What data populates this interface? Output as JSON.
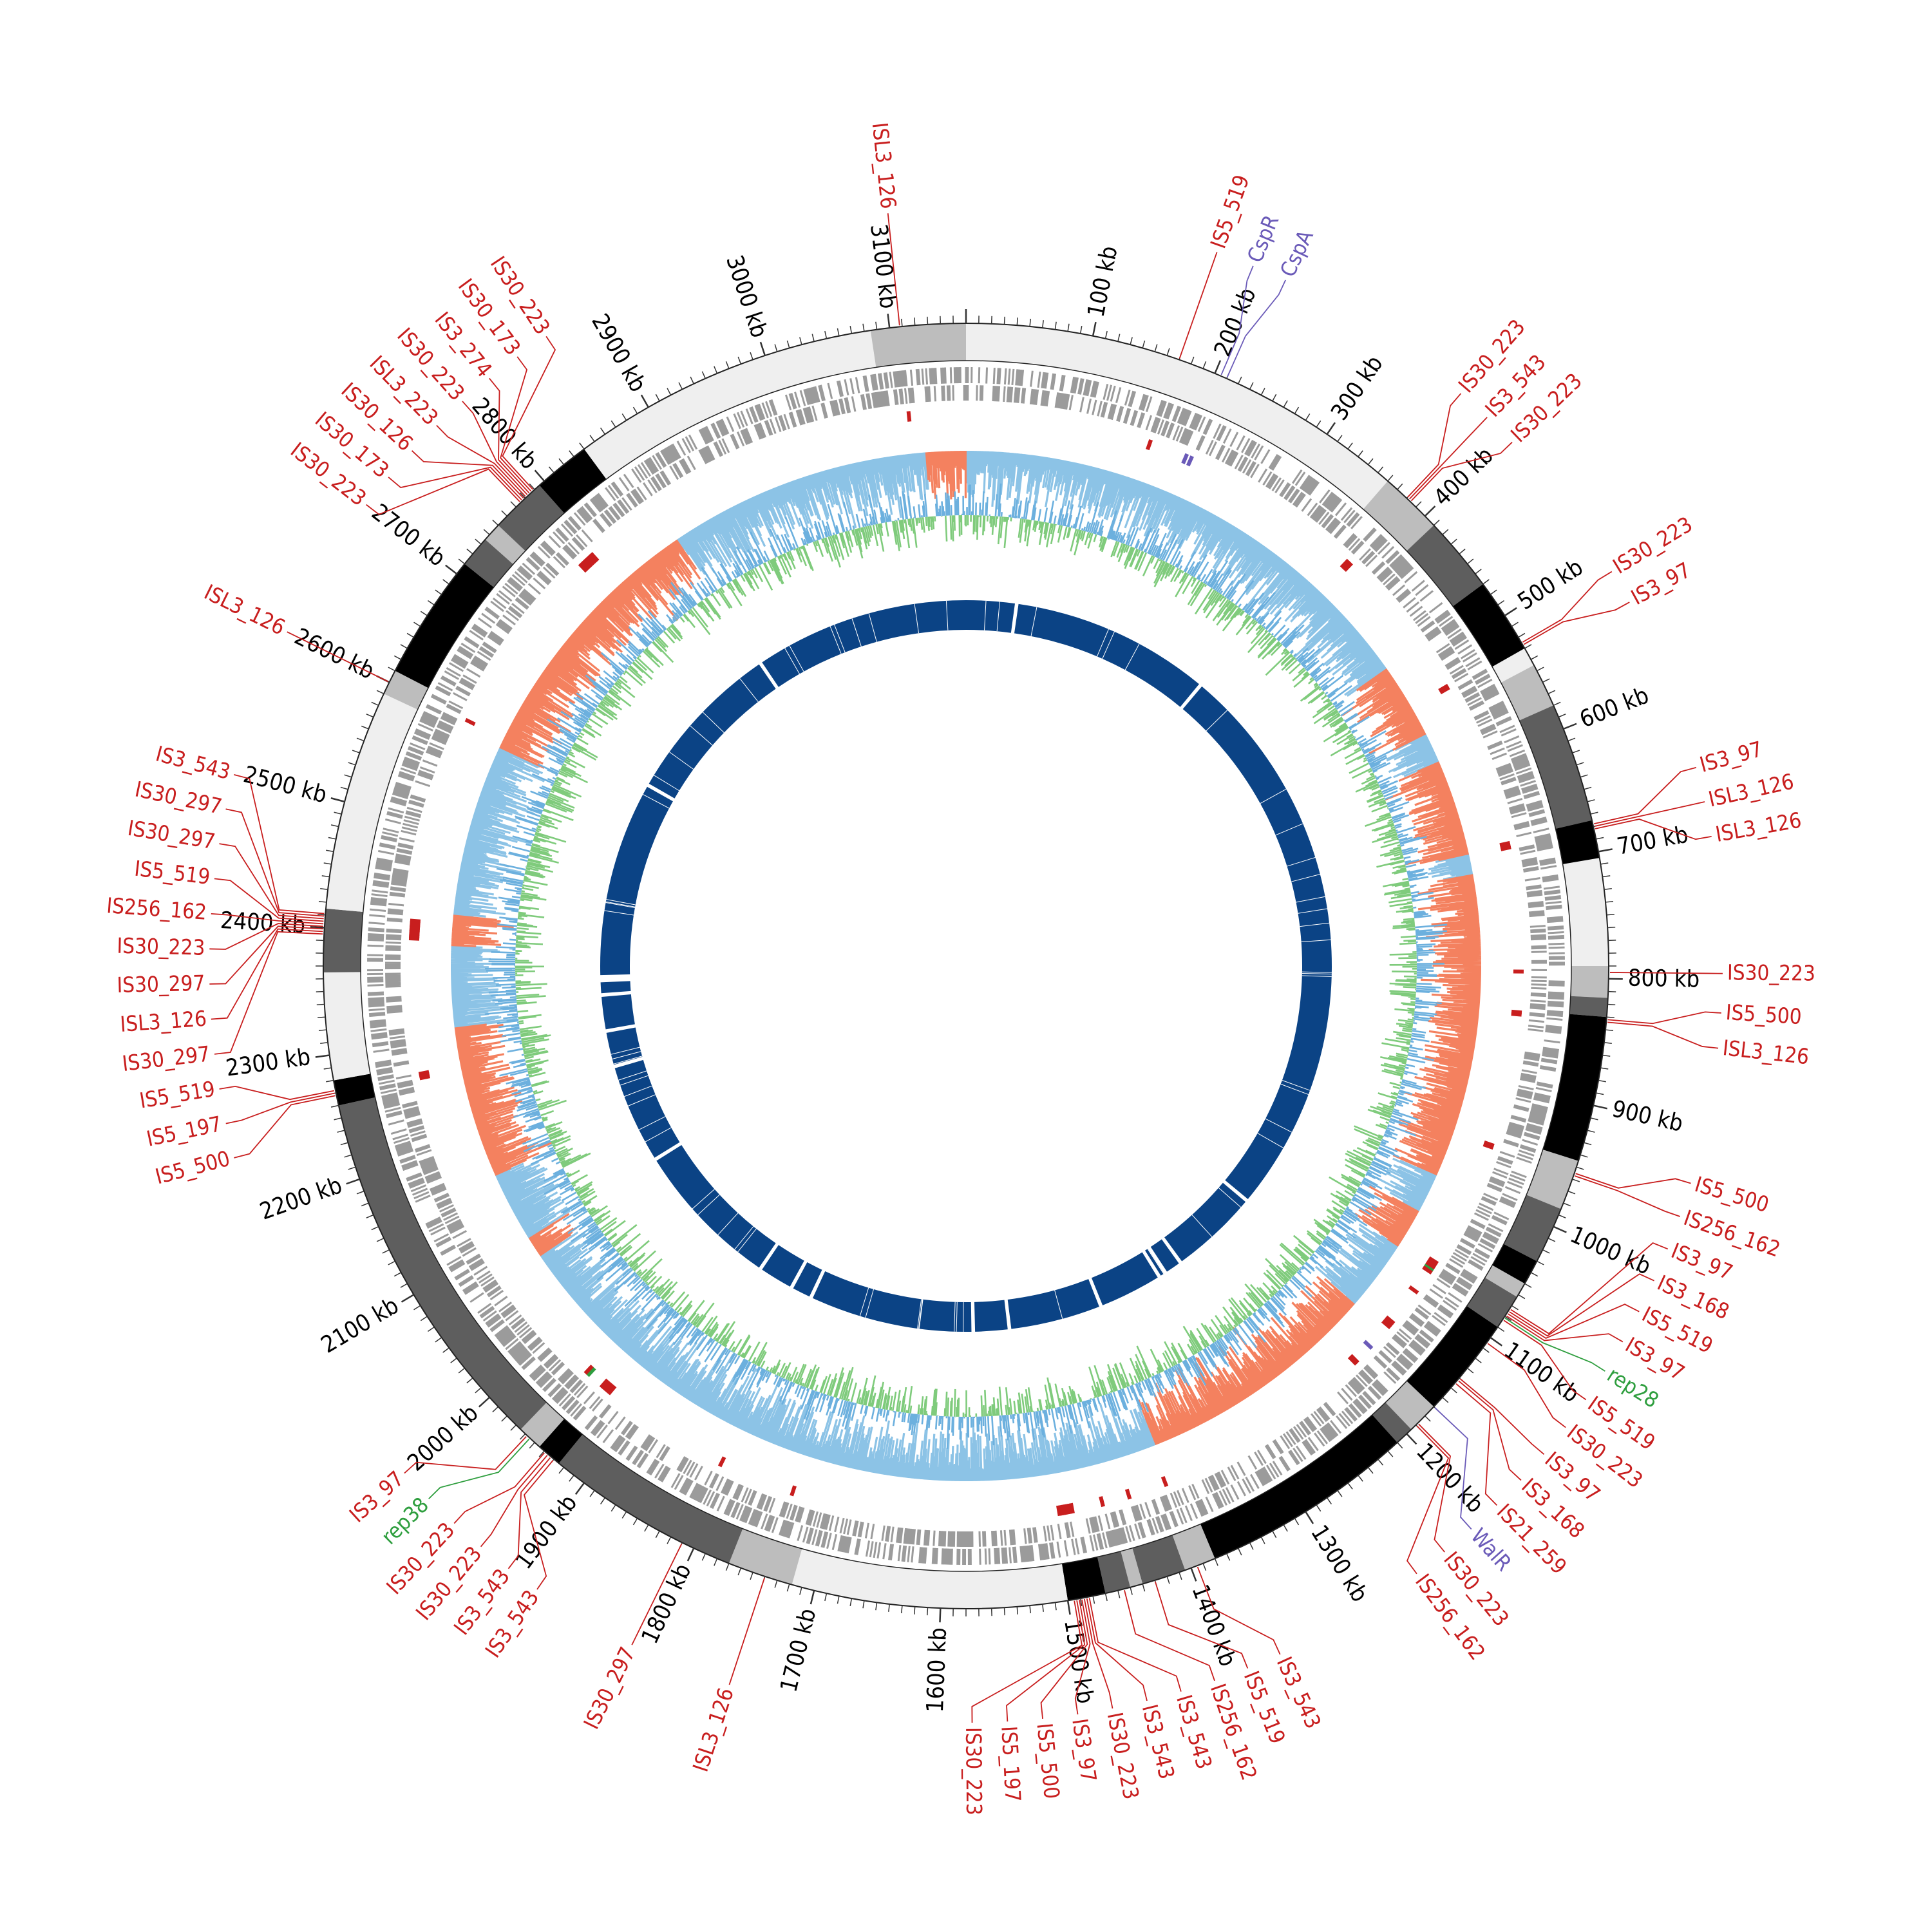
{
  "genome": {
    "length_kb": 3160,
    "scale_unit": "kb",
    "scale_ticks_kb": [
      100,
      200,
      300,
      400,
      500,
      600,
      700,
      800,
      900,
      1000,
      1100,
      1200,
      1300,
      1400,
      1500,
      1600,
      1700,
      1800,
      1900,
      2000,
      2100,
      2200,
      2300,
      2400,
      2500,
      2600,
      2700,
      2800,
      2900,
      3000,
      3100
    ]
  },
  "colors": {
    "is_element": "#c81e1e",
    "rep": "#2e9e3e",
    "regulator": "#6a5ab8",
    "blue_track": "#0b4385",
    "gc_skew_positive": "#8cc3e6",
    "gc_skew_negative": "#f4815f",
    "gc_content_low": "#7fcb7c",
    "gc_content_high": "#6cb0de",
    "cds": "#9b9b9b",
    "block_black": "#000000",
    "block_dark": "#5e5e5e",
    "block_mid": "#bdbdbd",
    "block_light": "#efefef"
  },
  "labels": [
    {
      "text": "ISL3_126",
      "kb": 3108,
      "color": "is"
    },
    {
      "text": "IS5_519",
      "kb": 170,
      "color": "is"
    },
    {
      "text": "CspR",
      "kb": 205,
      "color": "reg"
    },
    {
      "text": "CspA",
      "kb": 210,
      "color": "reg"
    },
    {
      "text": "IS30_223",
      "kb": 380,
      "color": "is"
    },
    {
      "text": "IS3_543",
      "kb": 382,
      "color": "is"
    },
    {
      "text": "IS30_223",
      "kb": 384,
      "color": "is"
    },
    {
      "text": "IS30_223",
      "kb": 525,
      "color": "is"
    },
    {
      "text": "IS3_97",
      "kb": 527,
      "color": "is"
    },
    {
      "text": "IS3_97",
      "kb": 678,
      "color": "is"
    },
    {
      "text": "ISL3_126",
      "kb": 680,
      "color": "is"
    },
    {
      "text": "ISL3_126",
      "kb": 682,
      "color": "is"
    },
    {
      "text": "IS30_223",
      "kb": 795,
      "color": "is"
    },
    {
      "text": "IS5_500",
      "kb": 832,
      "color": "is"
    },
    {
      "text": "ISL3_126",
      "kb": 834,
      "color": "is"
    },
    {
      "text": "IS5_500",
      "kb": 955,
      "color": "is"
    },
    {
      "text": "IS256_162",
      "kb": 957,
      "color": "is"
    },
    {
      "text": "IS3_97",
      "kb": 1073,
      "color": "is"
    },
    {
      "text": "IS3_168",
      "kb": 1075,
      "color": "is"
    },
    {
      "text": "IS5_519",
      "kb": 1077,
      "color": "is"
    },
    {
      "text": "IS3_97",
      "kb": 1079,
      "color": "is"
    },
    {
      "text": "rep28",
      "kb": 1081,
      "color": "rep"
    },
    {
      "text": "IS5_519",
      "kb": 1083,
      "color": "is"
    },
    {
      "text": "IS30_223",
      "kb": 1105,
      "color": "is"
    },
    {
      "text": "IS3_97",
      "kb": 1140,
      "color": "is"
    },
    {
      "text": "IS3_168",
      "kb": 1142,
      "color": "is"
    },
    {
      "text": "IS21_259",
      "kb": 1145,
      "color": "is"
    },
    {
      "text": "WalR",
      "kb": 1170,
      "color": "reg"
    },
    {
      "text": "IS30_223",
      "kb": 1188,
      "color": "is"
    },
    {
      "text": "IS256_162",
      "kb": 1190,
      "color": "is"
    },
    {
      "text": "IS3_543",
      "kb": 1395,
      "color": "is"
    },
    {
      "text": "IS5_519",
      "kb": 1430,
      "color": "is"
    },
    {
      "text": "IS256_162",
      "kb": 1455,
      "color": "is"
    },
    {
      "text": "IS3_543",
      "kb": 1483,
      "color": "is"
    },
    {
      "text": "IS3_543",
      "kb": 1485,
      "color": "is"
    },
    {
      "text": "IS30_223",
      "kb": 1487,
      "color": "is"
    },
    {
      "text": "IS3_97",
      "kb": 1489,
      "color": "is"
    },
    {
      "text": "IS5_500",
      "kb": 1491,
      "color": "is"
    },
    {
      "text": "IS5_197",
      "kb": 1493,
      "color": "is"
    },
    {
      "text": "IS30_223",
      "kb": 1495,
      "color": "is"
    },
    {
      "text": "ISL3_126",
      "kb": 1740,
      "color": "is"
    },
    {
      "text": "IS30_297",
      "kb": 1810,
      "color": "is"
    },
    {
      "text": "IS3_543",
      "kb": 1930,
      "color": "is"
    },
    {
      "text": "IS3_543",
      "kb": 1933,
      "color": "is"
    },
    {
      "text": "IS30_223",
      "kb": 1936,
      "color": "is"
    },
    {
      "text": "IS30_223",
      "kb": 1939,
      "color": "is"
    },
    {
      "text": "rep38",
      "kb": 1955,
      "color": "rep"
    },
    {
      "text": "IS3_97",
      "kb": 1958,
      "color": "is"
    },
    {
      "text": "IS5_500",
      "kb": 2268,
      "color": "is"
    },
    {
      "text": "IS5_197",
      "kb": 2270,
      "color": "is"
    },
    {
      "text": "IS5_519",
      "kb": 2272,
      "color": "is"
    },
    {
      "text": "IS30_297",
      "kb": 2395,
      "color": "is"
    },
    {
      "text": "ISL3_126",
      "kb": 2397,
      "color": "is"
    },
    {
      "text": "IS30_297",
      "kb": 2399,
      "color": "is"
    },
    {
      "text": "IS30_223",
      "kb": 2401,
      "color": "is"
    },
    {
      "text": "IS256_162",
      "kb": 2403,
      "color": "is"
    },
    {
      "text": "IS5_519",
      "kb": 2405,
      "color": "is"
    },
    {
      "text": "IS30_297",
      "kb": 2407,
      "color": "is"
    },
    {
      "text": "IS30_297",
      "kb": 2409,
      "color": "is"
    },
    {
      "text": "IS3_543",
      "kb": 2411,
      "color": "is"
    },
    {
      "text": "ISL3_126",
      "kb": 2600,
      "color": "is"
    },
    {
      "text": "IS30_223",
      "kb": 2775,
      "color": "is"
    },
    {
      "text": "IS30_173",
      "kb": 2777,
      "color": "is"
    },
    {
      "text": "IS30_126",
      "kb": 2779,
      "color": "is"
    },
    {
      "text": "ISL3_223",
      "kb": 2781,
      "color": "is"
    },
    {
      "text": "IS30_223",
      "kb": 2783,
      "color": "is"
    },
    {
      "text": "IS3_274",
      "kb": 2785,
      "color": "is"
    },
    {
      "text": "IS30_173",
      "kb": 2787,
      "color": "is"
    },
    {
      "text": "IS30_223",
      "kb": 2789,
      "color": "is"
    }
  ],
  "outer_blocks": [
    {
      "start": 0,
      "end": 3085,
      "shade": "light"
    },
    {
      "start": 3085,
      "end": 3160,
      "shade": "mid"
    },
    {
      "start": 360,
      "end": 410,
      "shade": "mid"
    },
    {
      "start": 410,
      "end": 470,
      "shade": "dark"
    },
    {
      "start": 470,
      "end": 530,
      "shade": "black"
    },
    {
      "start": 530,
      "end": 545,
      "shade": "light"
    },
    {
      "start": 545,
      "end": 580,
      "shade": "mid"
    },
    {
      "start": 580,
      "end": 675,
      "shade": "dark"
    },
    {
      "start": 675,
      "end": 705,
      "shade": "black"
    },
    {
      "start": 790,
      "end": 815,
      "shade": "mid"
    },
    {
      "start": 815,
      "end": 830,
      "shade": "dark"
    },
    {
      "start": 830,
      "end": 945,
      "shade": "black"
    },
    {
      "start": 945,
      "end": 985,
      "shade": "mid"
    },
    {
      "start": 985,
      "end": 1030,
      "shade": "dark"
    },
    {
      "start": 1030,
      "end": 1050,
      "shade": "black"
    },
    {
      "start": 1050,
      "end": 1062,
      "shade": "mid"
    },
    {
      "start": 1062,
      "end": 1090,
      "shade": "dark"
    },
    {
      "start": 1090,
      "end": 1170,
      "shade": "black"
    },
    {
      "start": 1170,
      "end": 1195,
      "shade": "mid"
    },
    {
      "start": 1195,
      "end": 1210,
      "shade": "dark"
    },
    {
      "start": 1210,
      "end": 1380,
      "shade": "black"
    },
    {
      "start": 1380,
      "end": 1405,
      "shade": "mid"
    },
    {
      "start": 1405,
      "end": 1440,
      "shade": "dark"
    },
    {
      "start": 1440,
      "end": 1450,
      "shade": "mid"
    },
    {
      "start": 1450,
      "end": 1470,
      "shade": "dark"
    },
    {
      "start": 1470,
      "end": 1500,
      "shade": "black"
    },
    {
      "start": 1500,
      "end": 1718,
      "shade": "light"
    },
    {
      "start": 1718,
      "end": 1770,
      "shade": "mid"
    },
    {
      "start": 1770,
      "end": 1925,
      "shade": "dark"
    },
    {
      "start": 1925,
      "end": 1945,
      "shade": "black"
    },
    {
      "start": 1945,
      "end": 1965,
      "shade": "mid"
    },
    {
      "start": 1965,
      "end": 2260,
      "shade": "dark"
    },
    {
      "start": 2260,
      "end": 2280,
      "shade": "black"
    },
    {
      "start": 2280,
      "end": 2365,
      "shade": "light"
    },
    {
      "start": 2365,
      "end": 2415,
      "shade": "dark"
    },
    {
      "start": 2415,
      "end": 2590,
      "shade": "light"
    },
    {
      "start": 2590,
      "end": 2610,
      "shade": "mid"
    },
    {
      "start": 2610,
      "end": 2710,
      "shade": "black"
    },
    {
      "start": 2710,
      "end": 2735,
      "shade": "dark"
    },
    {
      "start": 2735,
      "end": 2750,
      "shade": "mid"
    },
    {
      "start": 2750,
      "end": 2795,
      "shade": "dark"
    },
    {
      "start": 2795,
      "end": 2840,
      "shade": "black"
    }
  ],
  "skew_regions": [
    {
      "start": 3120,
      "end": 3160,
      "sign": "neg"
    },
    {
      "start": 0,
      "end": 480,
      "sign": "pos"
    },
    {
      "start": 480,
      "end": 555,
      "sign": "neg"
    },
    {
      "start": 555,
      "end": 585,
      "sign": "pos"
    },
    {
      "start": 585,
      "end": 680,
      "sign": "neg"
    },
    {
      "start": 680,
      "end": 700,
      "sign": "pos"
    },
    {
      "start": 700,
      "end": 1000,
      "sign": "neg"
    },
    {
      "start": 1000,
      "end": 1040,
      "sign": "pos"
    },
    {
      "start": 1040,
      "end": 1080,
      "sign": "neg"
    },
    {
      "start": 1080,
      "end": 1150,
      "sign": "pos"
    },
    {
      "start": 1150,
      "end": 1390,
      "sign": "neg"
    },
    {
      "start": 1390,
      "end": 2070,
      "sign": "pos"
    },
    {
      "start": 2070,
      "end": 2090,
      "sign": "neg"
    },
    {
      "start": 2090,
      "end": 2160,
      "sign": "pos"
    },
    {
      "start": 2160,
      "end": 2310,
      "sign": "neg"
    },
    {
      "start": 2310,
      "end": 2390,
      "sign": "pos"
    },
    {
      "start": 2390,
      "end": 2420,
      "sign": "neg"
    },
    {
      "start": 2420,
      "end": 2590,
      "sign": "pos"
    },
    {
      "start": 2590,
      "end": 2860,
      "sign": "neg"
    },
    {
      "start": 2860,
      "end": 3120,
      "sign": "pos"
    }
  ],
  "blue_gaps_kb": [
    70,
    350,
    1140,
    1265,
    1290,
    1300,
    1390,
    1520,
    1570,
    1800,
    1830,
    1880,
    2090,
    2230,
    2280,
    2330,
    2350,
    2355,
    2630,
    2860
  ]
}
